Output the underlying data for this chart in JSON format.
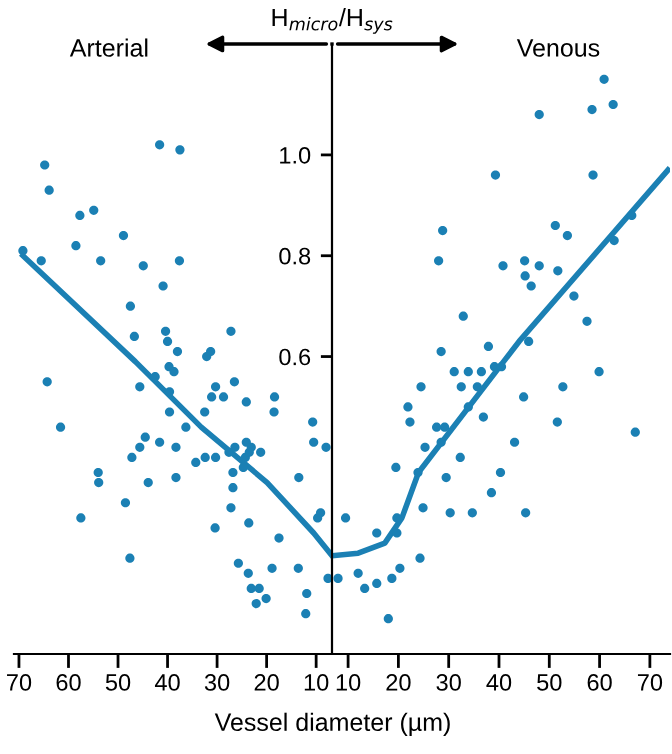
{
  "chart_data": [
    {
      "type": "scatter",
      "title": "Arterial",
      "xlabel": "Vessel diameter (µm)",
      "ylabel": "H$_{micro}$/H$_{sys}$",
      "xlim": [
        71,
        6.8
      ],
      "xticks": [
        70,
        60,
        50,
        40,
        30,
        20,
        10
      ],
      "ylim": [
        0.01,
        1.22
      ],
      "tick_labels": "x",
      "marker": "circle",
      "legend": false,
      "grid": false,
      "series": [
        {
          "color": "#1b80b4",
          "x": [
            69.2,
            65.5,
            64.8,
            63.9,
            64.3,
            61.6,
            57.7,
            54.9,
            58.5,
            53.5,
            57.5,
            54,
            53.9,
            48.9,
            47.5,
            46.7,
            45.6,
            44.9,
            41.6,
            37.5,
            37.6,
            40.9,
            40.4,
            40,
            39.7,
            38.7,
            38,
            42.5,
            39.6,
            39.6,
            48.5,
            47.6,
            47.2,
            45.6,
            44.5,
            43.9,
            41.6,
            38.3,
            38.3,
            36.3,
            34.3,
            32.4,
            30.3,
            32.5,
            32.1,
            31.3,
            31.1,
            30.3,
            28.7,
            27.2,
            26.5,
            24.1,
            30.4,
            27.2,
            26.8,
            26.8,
            27.6,
            26.4,
            24.7,
            24.3,
            24.1,
            23.1,
            23.5,
            21.2,
            25.7,
            23.6,
            23.7,
            23.1,
            21.5,
            22.1,
            20.1,
            18.9,
            17.5,
            18.4,
            18.5,
            13.5,
            13.6,
            11.9,
            12.1,
            10.7,
            10.5,
            9.7,
            9.1,
            8.0,
            7.6
          ],
          "values": [
            0.81,
            0.79,
            0.98,
            0.93,
            0.55,
            0.46,
            0.88,
            0.89,
            0.82,
            0.79,
            0.28,
            0.37,
            0.35,
            0.84,
            0.7,
            0.64,
            0.54,
            0.78,
            1.02,
            1.01,
            0.79,
            0.74,
            0.65,
            0.63,
            0.58,
            0.57,
            0.61,
            0.56,
            0.53,
            0.49,
            0.31,
            0.2,
            0.4,
            0.42,
            0.44,
            0.35,
            0.43,
            0.42,
            0.36,
            0.46,
            0.39,
            0.4,
            0.4,
            0.49,
            0.6,
            0.61,
            0.52,
            0.54,
            0.52,
            0.65,
            0.55,
            0.51,
            0.26,
            0.3,
            0.34,
            0.37,
            0.41,
            0.42,
            0.38,
            0.4,
            0.43,
            0.42,
            0.41,
            0.41,
            0.19,
            0.27,
            0.17,
            0.14,
            0.14,
            0.11,
            0.12,
            0.18,
            0.24,
            0.52,
            0.49,
            0.36,
            0.18,
            0.13,
            0.09,
            0.47,
            0.43,
            0.28,
            0.29,
            0.42,
            0.16
          ]
        },
        {
          "type": "line",
          "color": "#1b80b4",
          "marker": "none",
          "x": [
            69.2,
            46.5,
            33.2,
            19.9,
            10.5,
            7.2,
            6.8
          ],
          "values": [
            0.8,
            0.59,
            0.46,
            0.35,
            0.25,
            0.21,
            0.205
          ]
        }
      ]
    },
    {
      "type": "scatter",
      "title": "Venous",
      "xlim": [
        6.8,
        74
      ],
      "xticks": [
        10,
        20,
        30,
        40,
        50,
        60,
        70
      ],
      "ylim": [
        0.01,
        1.22
      ],
      "yticks": [
        0.6,
        0.8,
        {
          "value": 1.0,
          "label": "1.0"
        }
      ],
      "marker": "circle",
      "legend": false,
      "grid": false,
      "series": [
        {
          "color": "#1b80b4",
          "x": [
            8.0,
            9.5,
            12,
            13.3,
            15.7,
            15.7,
            18,
            18.7,
            20.3,
            19.5,
            19.7,
            19.7,
            21.9,
            22.3,
            24.3,
            23.9,
            24.5,
            25.3,
            24.9,
            27.6,
            28.5,
            29.2,
            28,
            28.8,
            28.5,
            29.5,
            30.3,
            31.1,
            32.3,
            32.5,
            32.9,
            33.9,
            33.9,
            34.7,
            35.7,
            36.5,
            36.9,
            37.9,
            39.1,
            39.3,
            40.8,
            40.5,
            40.3,
            38.5,
            43.1,
            44.9,
            45.3,
            45.1,
            45.2,
            46.4,
            45.9,
            48,
            48,
            51.2,
            51.7,
            53.6,
            52.7,
            51.6,
            54.9,
            57.5,
            58.5,
            58.7,
            59.9,
            60.9,
            62.7,
            62.9,
            66.4,
            67.1
          ],
          "values": [
            0.16,
            0.28,
            0.17,
            0.14,
            0.15,
            0.25,
            0.08,
            0.16,
            0.18,
            0.38,
            0.28,
            0.25,
            0.5,
            0.47,
            0.2,
            0.37,
            0.54,
            0.42,
            0.3,
            0.46,
            0.43,
            0.46,
            0.79,
            0.85,
            0.61,
            0.36,
            0.29,
            0.57,
            0.4,
            0.54,
            0.68,
            0.57,
            0.5,
            0.29,
            0.54,
            0.57,
            0.48,
            0.62,
            0.58,
            0.96,
            0.78,
            0.58,
            0.37,
            0.33,
            0.43,
            0.52,
            0.29,
            0.79,
            0.76,
            0.74,
            0.63,
            1.08,
            0.78,
            0.86,
            0.77,
            0.84,
            0.54,
            0.47,
            0.72,
            0.67,
            1.09,
            0.96,
            0.57,
            1.15,
            1.1,
            0.83,
            0.88,
            0.45
          ]
        },
        {
          "type": "line",
          "color": "#1b80b4",
          "marker": "none",
          "x": [
            6.8,
            12,
            17.3,
            20.7,
            24,
            44,
            73.6
          ],
          "values": [
            0.205,
            0.21,
            0.23,
            0.28,
            0.37,
            0.63,
            0.97
          ]
        }
      ]
    }
  ]
}
